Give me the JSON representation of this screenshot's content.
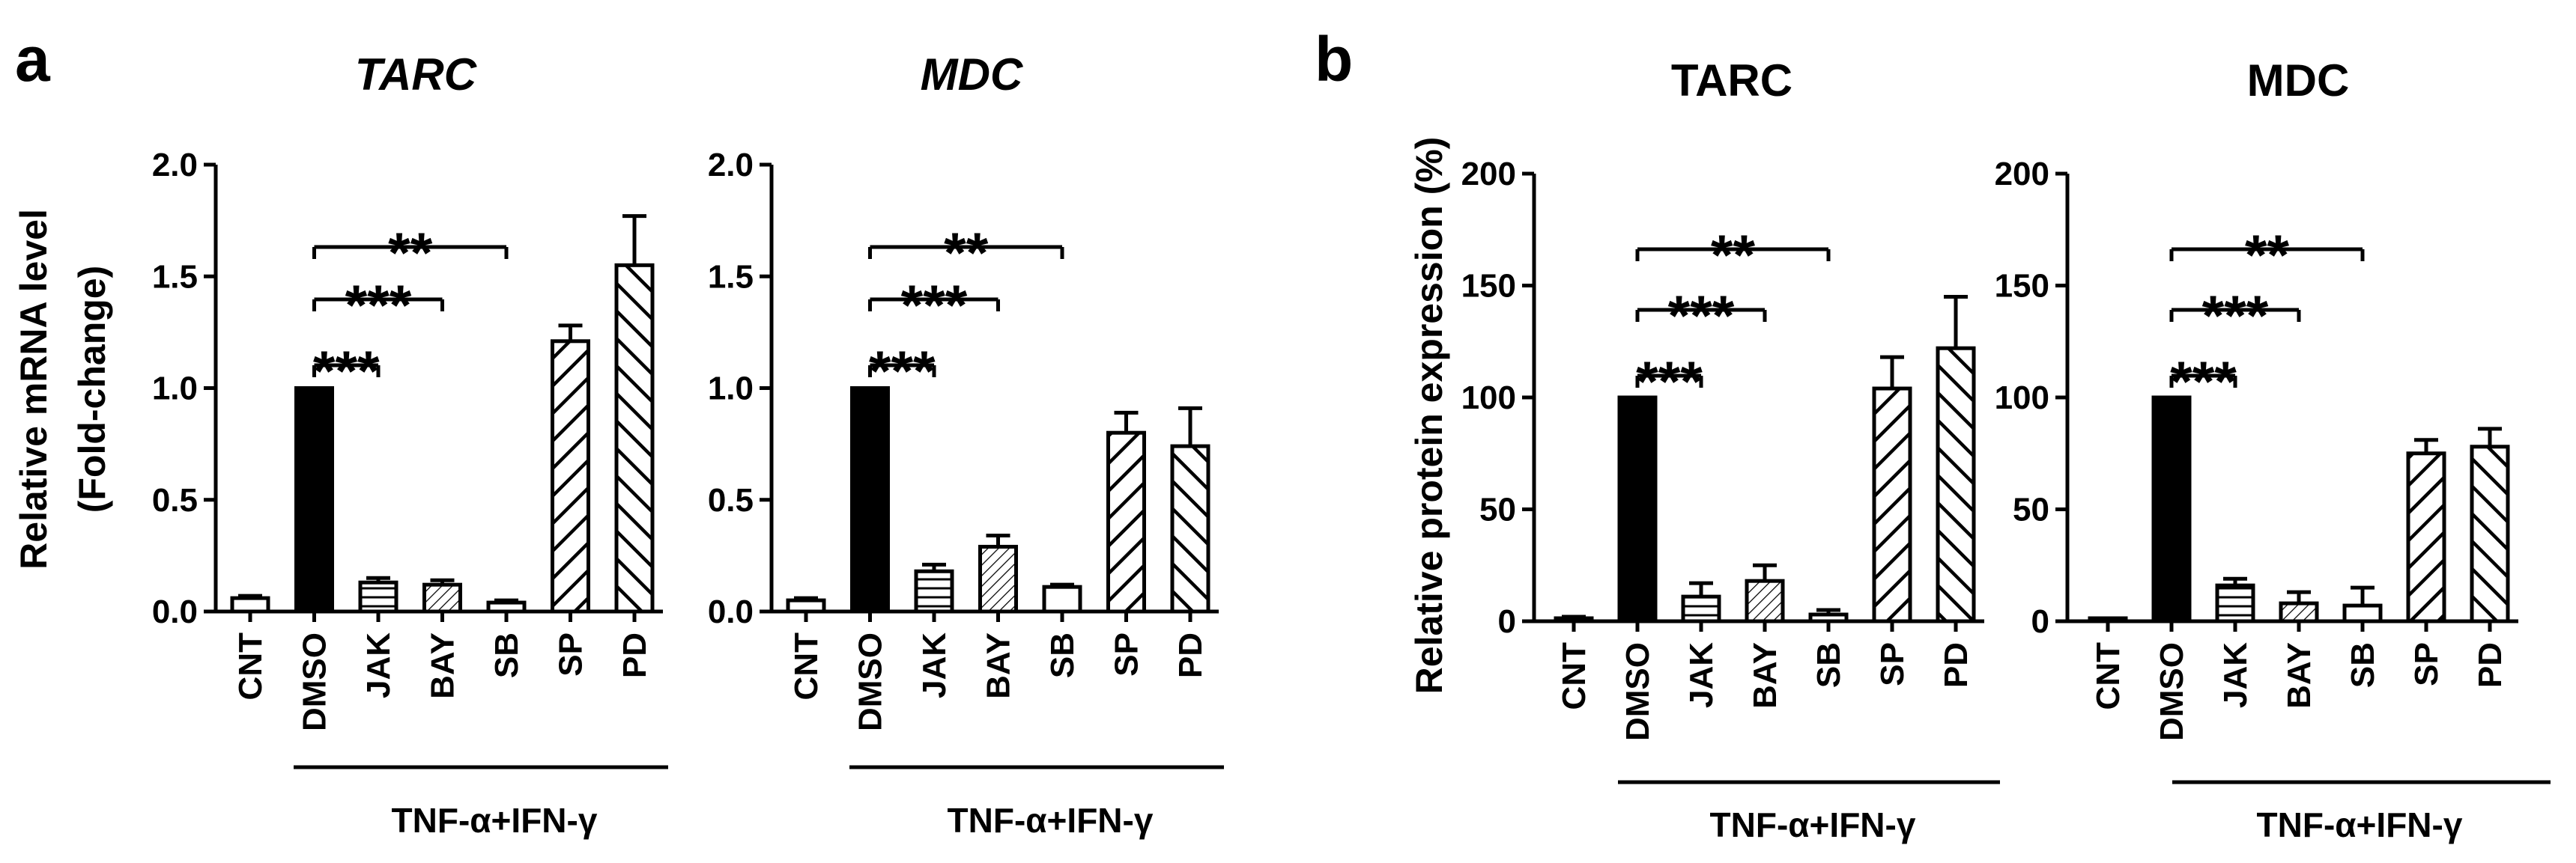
{
  "panels": [
    {
      "letter": "a"
    },
    {
      "letter": "b"
    }
  ],
  "chart_data": [
    {
      "type": "bar",
      "panel": "a",
      "title": "TARC",
      "title_italic": true,
      "ylabel": "Relative mRNA level",
      "ylabel2": "(Fold-change)",
      "yticks": [
        "0.0",
        "0.5",
        "1.0",
        "1.5",
        "2.0"
      ],
      "ylim": [
        0,
        2.0
      ],
      "categories": [
        "CNT",
        "DMSO",
        "JAK",
        "BAY",
        "SB",
        "SP",
        "PD"
      ],
      "values": [
        0.06,
        1.0,
        0.13,
        0.12,
        0.04,
        1.21,
        1.55
      ],
      "errors": [
        0.01,
        0.0,
        0.02,
        0.02,
        0.01,
        0.07,
        0.22
      ],
      "patterns": [
        "hollow",
        "solid",
        "hlines",
        "thindiag",
        "hollow",
        "diag",
        "diagrev"
      ],
      "treatment_label": "TNF-α+IFN-γ",
      "significance": [
        {
          "from": "DMSO",
          "to": "JAK",
          "label": "***"
        },
        {
          "from": "DMSO",
          "to": "BAY",
          "label": "***"
        },
        {
          "from": "DMSO",
          "to": "SB",
          "label": "**"
        }
      ]
    },
    {
      "type": "bar",
      "panel": "a",
      "title": "MDC",
      "title_italic": true,
      "ylabel": "",
      "ylabel2": "",
      "yticks": [
        "0.0",
        "0.5",
        "1.0",
        "1.5",
        "2.0"
      ],
      "ylim": [
        0,
        2.0
      ],
      "categories": [
        "CNT",
        "DMSO",
        "JAK",
        "BAY",
        "SB",
        "SP",
        "PD"
      ],
      "values": [
        0.05,
        1.0,
        0.18,
        0.29,
        0.11,
        0.8,
        0.74
      ],
      "errors": [
        0.01,
        0.0,
        0.03,
        0.05,
        0.01,
        0.09,
        0.17
      ],
      "patterns": [
        "hollow",
        "solid",
        "hlines",
        "thindiag",
        "hollow",
        "diag",
        "diagrev"
      ],
      "treatment_label": "TNF-α+IFN-γ",
      "significance": [
        {
          "from": "DMSO",
          "to": "JAK",
          "label": "***"
        },
        {
          "from": "DMSO",
          "to": "BAY",
          "label": "***"
        },
        {
          "from": "DMSO",
          "to": "SB",
          "label": "**"
        }
      ]
    },
    {
      "type": "bar",
      "panel": "b",
      "title": "TARC",
      "title_italic": false,
      "ylabel": "Relative protein expression (%)",
      "ylabel2": "",
      "yticks": [
        "0",
        "50",
        "100",
        "150",
        "200"
      ],
      "ylim": [
        0,
        200
      ],
      "categories": [
        "CNT",
        "DMSO",
        "JAK",
        "BAY",
        "SB",
        "SP",
        "PD"
      ],
      "values": [
        1,
        100,
        11,
        18,
        3,
        104,
        122
      ],
      "errors": [
        1,
        0,
        6,
        7,
        2,
        14,
        23
      ],
      "patterns": [
        "hollow",
        "solid",
        "hlines",
        "thindiag",
        "hollow",
        "diag",
        "diagrev"
      ],
      "treatment_label": "TNF-α+IFN-γ",
      "significance": [
        {
          "from": "DMSO",
          "to": "JAK",
          "label": "***"
        },
        {
          "from": "DMSO",
          "to": "BAY",
          "label": "***"
        },
        {
          "from": "DMSO",
          "to": "SB",
          "label": "**"
        }
      ]
    },
    {
      "type": "bar",
      "panel": "b",
      "title": "MDC",
      "title_italic": false,
      "ylabel": "",
      "ylabel2": "",
      "yticks": [
        "0",
        "50",
        "100",
        "150",
        "200"
      ],
      "ylim": [
        0,
        200
      ],
      "categories": [
        "CNT",
        "DMSO",
        "JAK",
        "BAY",
        "SB",
        "SP",
        "PD"
      ],
      "values": [
        0,
        100,
        16,
        8,
        7,
        75,
        78
      ],
      "errors": [
        0,
        0,
        3,
        5,
        8,
        6,
        8
      ],
      "patterns": [
        "hollow",
        "solid",
        "hlines",
        "thindiag",
        "hollow",
        "diag",
        "diagrev"
      ],
      "treatment_label": "TNF-α+IFN-γ",
      "significance": [
        {
          "from": "DMSO",
          "to": "JAK",
          "label": "***"
        },
        {
          "from": "DMSO",
          "to": "BAY",
          "label": "***"
        },
        {
          "from": "DMSO",
          "to": "SB",
          "label": "**"
        }
      ]
    }
  ]
}
